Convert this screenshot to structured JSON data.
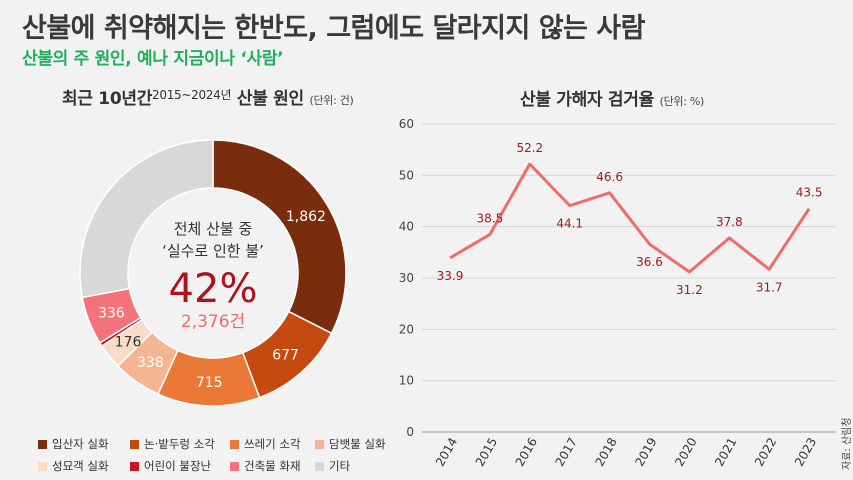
{
  "header": {
    "title": "산불에 취약해지는 한반도, 그럼에도 달라지지 않는 사람",
    "subtitle": "산불의 주 원인, 예나 지금이나 ‘사람’"
  },
  "source": "자료: 산림청",
  "chart_data": [
    {
      "type": "pie",
      "title_main": "최근 10년간",
      "title_period": "2015~2024년",
      "title_rest": "산불 원인",
      "unit": "(단위: 건)",
      "center_text": {
        "line1": "전체 산불 중",
        "line2": "‘실수로 인한 불’",
        "percent": "42%",
        "count": "2,376건"
      },
      "slices": [
        {
          "name": "입산자 실화",
          "value": 1862,
          "label": "1,862",
          "color": "#7a2d0c"
        },
        {
          "name": "논·밭두렁 소각",
          "value": 677,
          "label": "677",
          "color": "#c44a12"
        },
        {
          "name": "쓰레기 소각",
          "value": 715,
          "label": "715",
          "color": "#ea7836"
        },
        {
          "name": "담뱃불 실화",
          "value": 338,
          "label": "338",
          "color": "#f4b690"
        },
        {
          "name": "성묘객 실화",
          "value": 176,
          "label": "176",
          "color": "#fadbc8"
        },
        {
          "name": "어린이 불장난",
          "value": 25,
          "label": "",
          "color": "#c8141e"
        },
        {
          "name": "건축물 화재",
          "value": 336,
          "label": "336",
          "color": "#f4727a"
        },
        {
          "name": "기타",
          "value": 1601,
          "label": "",
          "color": "#d8d8d8"
        }
      ],
      "legend": [
        {
          "name": "입산자 실화",
          "color": "#7a2d0c"
        },
        {
          "name": "논·밭두렁 소각",
          "color": "#c44a12"
        },
        {
          "name": "쓰레기 소각",
          "color": "#ea7836"
        },
        {
          "name": "담뱃불 실화",
          "color": "#f4b690"
        },
        {
          "name": "성묘객 실화",
          "color": "#fadbc8"
        },
        {
          "name": "어린이 불장난",
          "color": "#c8141e"
        },
        {
          "name": "건축물 화재",
          "color": "#f4727a"
        },
        {
          "name": "기타",
          "color": "#d8d8d8"
        }
      ]
    },
    {
      "type": "line",
      "title": "산불 가해자 검거율",
      "unit": "(단위: %)",
      "x": [
        "2014",
        "2015",
        "2016",
        "2017",
        "2018",
        "2019",
        "2020",
        "2021",
        "2022",
        "2023"
      ],
      "values": [
        33.9,
        38.5,
        52.2,
        44.1,
        46.6,
        36.6,
        31.2,
        37.8,
        31.7,
        43.5
      ],
      "ylim": [
        0,
        60
      ],
      "yticks": [
        0,
        10,
        20,
        30,
        40,
        50,
        60
      ],
      "color": "#f26b6b",
      "label_color": "#9e1a1a",
      "grid": true
    }
  ]
}
